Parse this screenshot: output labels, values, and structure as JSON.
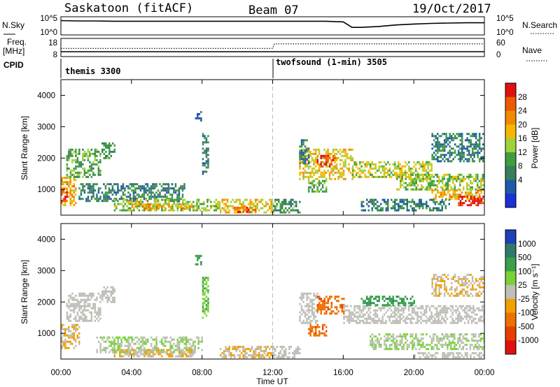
{
  "header": {
    "station": "Saskatoon (fitACF)",
    "beam": "Beam 07",
    "date": "19/Oct/2017"
  },
  "noise_panel": {
    "left_label": "N.Sky",
    "left_ticks": [
      "10^5",
      "10^0"
    ],
    "right_ticks": [
      "10^5",
      "10^0"
    ],
    "right_label": "N.Search"
  },
  "freq_panel": {
    "left_label_1": "Freq.",
    "left_label_2": "[MHz]",
    "left_ticks": [
      "18",
      "8"
    ],
    "right_ticks": [
      "60",
      "0"
    ],
    "right_label": "Nave",
    "cpid_label": "CPID",
    "programs": [
      "themis 3300",
      "twofsound (1-min) 3505"
    ]
  },
  "x_axis": {
    "ticks": [
      "00:00",
      "04:00",
      "08:00",
      "12:00",
      "16:00",
      "20:00",
      "00:00"
    ],
    "label": "Time UT"
  },
  "power_panel": {
    "ylabel": "Slant Range [km]",
    "yticks": [
      "4000",
      "3000",
      "2000",
      "1000"
    ],
    "colorbar_label": "Power [dB]",
    "colorbar_ticks": [
      "28",
      "24",
      "20",
      "16",
      "12",
      "8",
      "4"
    ]
  },
  "velocity_panel": {
    "ylabel": "Slant Range [km]",
    "yticks": [
      "4000",
      "3000",
      "2000",
      "1000"
    ],
    "colorbar_label": "Velocity [m s⁻¹]",
    "colorbar_ticks": [
      "1000",
      "500",
      "100",
      "25",
      "-25",
      "-100",
      "-500",
      "-1000"
    ]
  },
  "colors": {
    "power_scale": [
      "#1d2fd6",
      "#1f5aa8",
      "#3a7d5a",
      "#3e9e3e",
      "#9fd23a",
      "#f5b800",
      "#f08a00",
      "#ee5a00",
      "#e01010"
    ],
    "velocity_scale": [
      "#1d3fb8",
      "#2f7a6a",
      "#3aa04a",
      "#7ad23a",
      "#bfbfb8",
      "#f0a000",
      "#ee7000",
      "#e83d00",
      "#e01010"
    ]
  },
  "chart_data": [
    {
      "type": "line",
      "title": "N.Sky / N.Search",
      "x_unit": "hours UT",
      "x": [
        0,
        1,
        2,
        3,
        4,
        5,
        6,
        7,
        8,
        9,
        10,
        11,
        12,
        13,
        14,
        15,
        16,
        16.5,
        17,
        18,
        19,
        20,
        21,
        22,
        23,
        24
      ],
      "series": [
        {
          "name": "N.Sky",
          "values_log10": [
            4.2,
            4.1,
            4.1,
            4.0,
            4.0,
            4.0,
            4.0,
            4.0,
            4.0,
            4.0,
            4.0,
            4.0,
            4.0,
            4.0,
            4.0,
            4.0,
            3.8,
            2.0,
            2.0,
            2.3,
            2.8,
            3.1,
            3.3,
            3.4,
            3.5,
            3.5
          ]
        }
      ]
    },
    {
      "type": "line",
      "title": "Freq. / Nave",
      "x": [
        0,
        12,
        12.1,
        24
      ],
      "series": [
        {
          "name": "Nave",
          "values": [
            28,
            28,
            45,
            45
          ]
        }
      ]
    },
    {
      "type": "heatmap",
      "title": "Power",
      "xlim": [
        0,
        24
      ],
      "ylim": [
        180,
        4500
      ],
      "colorbar": {
        "label": "Power [dB]",
        "range": [
          0,
          30
        ]
      },
      "regions": [
        {
          "x0": 0.0,
          "x1": 0.8,
          "y0": 500,
          "y1": 1400,
          "v": 20
        },
        {
          "x0": 0.0,
          "x1": 0.3,
          "y0": 600,
          "y1": 1000,
          "v": 28
        },
        {
          "x0": 0.3,
          "x1": 2.2,
          "y0": 1400,
          "y1": 2300,
          "v": 12
        },
        {
          "x0": 2.3,
          "x1": 3.0,
          "y0": 2000,
          "y1": 2500,
          "v": 10
        },
        {
          "x0": 1.0,
          "x1": 7.0,
          "y0": 600,
          "y1": 1200,
          "v": 8
        },
        {
          "x0": 3.0,
          "x1": 9.0,
          "y0": 300,
          "y1": 700,
          "v": 14
        },
        {
          "x0": 4.0,
          "x1": 7.5,
          "y0": 400,
          "y1": 550,
          "v": 20
        },
        {
          "x0": 9.0,
          "x1": 12.0,
          "y0": 250,
          "y1": 700,
          "v": 18
        },
        {
          "x0": 9.8,
          "x1": 11.0,
          "y0": 250,
          "y1": 450,
          "v": 24
        },
        {
          "x0": 12.0,
          "x1": 13.5,
          "y0": 250,
          "y1": 700,
          "v": 10
        },
        {
          "x0": 13.5,
          "x1": 16.5,
          "y0": 1300,
          "y1": 2300,
          "v": 18
        },
        {
          "x0": 14.5,
          "x1": 15.5,
          "y0": 1700,
          "y1": 2100,
          "v": 26
        },
        {
          "x0": 14.0,
          "x1": 15.0,
          "y0": 900,
          "y1": 1300,
          "v": 12
        },
        {
          "x0": 16.5,
          "x1": 21.0,
          "y0": 1400,
          "y1": 1900,
          "v": 16
        },
        {
          "x0": 19.0,
          "x1": 24.0,
          "y0": 1000,
          "y1": 1500,
          "v": 14
        },
        {
          "x0": 21.0,
          "x1": 24.0,
          "y0": 700,
          "y1": 1000,
          "v": 20
        },
        {
          "x0": 22.5,
          "x1": 24.0,
          "y0": 500,
          "y1": 800,
          "v": 28
        },
        {
          "x0": 21.0,
          "x1": 24.0,
          "y0": 1900,
          "y1": 2800,
          "v": 8
        },
        {
          "x0": 13.5,
          "x1": 14.0,
          "y0": 1800,
          "y1": 2600,
          "v": 8
        },
        {
          "x0": 8.0,
          "x1": 8.3,
          "y0": 1500,
          "y1": 2800,
          "v": 8
        },
        {
          "x0": 7.6,
          "x1": 7.9,
          "y0": 3200,
          "y1": 3500,
          "v": 6
        },
        {
          "x0": 17.0,
          "x1": 22.0,
          "y0": 300,
          "y1": 700,
          "v": 8
        }
      ]
    },
    {
      "type": "heatmap",
      "title": "Velocity",
      "xlim": [
        0,
        24
      ],
      "ylim": [
        180,
        4500
      ],
      "colorbar": {
        "label": "Velocity [m s⁻¹]",
        "range": [
          -1000,
          1000
        ]
      },
      "regions": [
        {
          "x0": 0.0,
          "x1": 1.0,
          "y0": 500,
          "y1": 1300,
          "v": -100
        },
        {
          "x0": 0.3,
          "x1": 2.2,
          "y0": 1400,
          "y1": 2300,
          "v": 0
        },
        {
          "x0": 2.3,
          "x1": 3.0,
          "y0": 2000,
          "y1": 2500,
          "v": 0
        },
        {
          "x0": 2.0,
          "x1": 8.0,
          "y0": 400,
          "y1": 900,
          "v": 100
        },
        {
          "x0": 3.0,
          "x1": 7.5,
          "y0": 250,
          "y1": 500,
          "v": -100
        },
        {
          "x0": 8.0,
          "x1": 8.3,
          "y0": 1500,
          "y1": 2800,
          "v": 300
        },
        {
          "x0": 7.6,
          "x1": 7.9,
          "y0": 3200,
          "y1": 3500,
          "v": 500
        },
        {
          "x0": 9.0,
          "x1": 12.0,
          "y0": 250,
          "y1": 600,
          "v": -100
        },
        {
          "x0": 12.0,
          "x1": 13.5,
          "y0": 250,
          "y1": 600,
          "v": 0
        },
        {
          "x0": 13.5,
          "x1": 14.5,
          "y0": 1300,
          "y1": 2300,
          "v": 0
        },
        {
          "x0": 14.5,
          "x1": 16.0,
          "y0": 1600,
          "y1": 2200,
          "v": -500
        },
        {
          "x0": 14.0,
          "x1": 15.0,
          "y0": 900,
          "y1": 1300,
          "v": -500
        },
        {
          "x0": 16.0,
          "x1": 24.0,
          "y0": 1300,
          "y1": 1900,
          "v": 0
        },
        {
          "x0": 17.5,
          "x1": 24.0,
          "y0": 500,
          "y1": 1000,
          "v": 100
        },
        {
          "x0": 21.0,
          "x1": 24.0,
          "y0": 2200,
          "y1": 2900,
          "v": -100
        },
        {
          "x0": 17.0,
          "x1": 20.0,
          "y0": 1900,
          "y1": 2200,
          "v": 500
        },
        {
          "x0": 20.0,
          "x1": 24.0,
          "y0": 200,
          "y1": 400,
          "v": 0
        }
      ]
    }
  ]
}
